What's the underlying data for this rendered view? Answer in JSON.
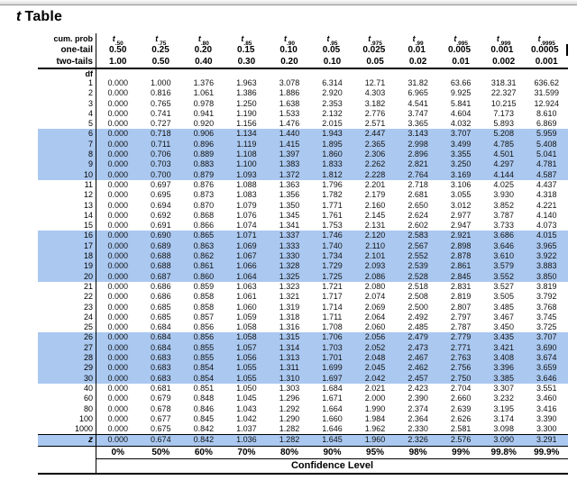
{
  "title": {
    "t": "t",
    "rest": "Table"
  },
  "colors": {
    "highlight": "#aac8f0",
    "line": "#000000",
    "top_bar": "#d8d8d8"
  },
  "header": {
    "cum_prob_label": "cum. prob",
    "one_tail_label": "one-tail",
    "two_tails_label": "two-tails",
    "df_label": "df",
    "t_base": "t",
    "t_subs": [
      ".50",
      ".75",
      ".80",
      ".85",
      ".90",
      ".95",
      ".975",
      ".99",
      ".995",
      ".999",
      ".9995"
    ],
    "one_tail": [
      "0.50",
      "0.25",
      "0.20",
      "0.15",
      "0.10",
      "0.05",
      "0.025",
      "0.01",
      "0.005",
      "0.001",
      "0.0005"
    ],
    "two_tails": [
      "1.00",
      "0.50",
      "0.40",
      "0.30",
      "0.20",
      "0.10",
      "0.05",
      "0.02",
      "0.01",
      "0.002",
      "0.001"
    ]
  },
  "body": {
    "rows": [
      {
        "df": "1",
        "highlight": false,
        "values": [
          "0.000",
          "1.000",
          "1.376",
          "1.963",
          "3.078",
          "6.314",
          "12.71",
          "31.82",
          "63.66",
          "318.31",
          "636.62"
        ]
      },
      {
        "df": "2",
        "highlight": false,
        "values": [
          "0.000",
          "0.816",
          "1.061",
          "1.386",
          "1.886",
          "2.920",
          "4.303",
          "6.965",
          "9.925",
          "22.327",
          "31.599"
        ]
      },
      {
        "df": "3",
        "highlight": false,
        "values": [
          "0.000",
          "0.765",
          "0.978",
          "1.250",
          "1.638",
          "2.353",
          "3.182",
          "4.541",
          "5.841",
          "10.215",
          "12.924"
        ]
      },
      {
        "df": "4",
        "highlight": false,
        "values": [
          "0.000",
          "0.741",
          "0.941",
          "1.190",
          "1.533",
          "2.132",
          "2.776",
          "3.747",
          "4.604",
          "7.173",
          "8.610"
        ]
      },
      {
        "df": "5",
        "highlight": false,
        "values": [
          "0.000",
          "0.727",
          "0.920",
          "1.156",
          "1.476",
          "2.015",
          "2.571",
          "3.365",
          "4.032",
          "5.893",
          "6.869"
        ]
      },
      {
        "df": "6",
        "highlight": true,
        "values": [
          "0.000",
          "0.718",
          "0.906",
          "1.134",
          "1.440",
          "1.943",
          "2.447",
          "3.143",
          "3.707",
          "5.208",
          "5.959"
        ]
      },
      {
        "df": "7",
        "highlight": true,
        "values": [
          "0.000",
          "0.711",
          "0.896",
          "1.119",
          "1.415",
          "1.895",
          "2.365",
          "2.998",
          "3.499",
          "4.785",
          "5.408"
        ]
      },
      {
        "df": "8",
        "highlight": true,
        "values": [
          "0.000",
          "0.706",
          "0.889",
          "1.108",
          "1.397",
          "1.860",
          "2.306",
          "2.896",
          "3.355",
          "4.501",
          "5.041"
        ]
      },
      {
        "df": "9",
        "highlight": true,
        "values": [
          "0.000",
          "0.703",
          "0.883",
          "1.100",
          "1.383",
          "1.833",
          "2.262",
          "2.821",
          "3.250",
          "4.297",
          "4.781"
        ]
      },
      {
        "df": "10",
        "highlight": true,
        "values": [
          "0.000",
          "0.700",
          "0.879",
          "1.093",
          "1.372",
          "1.812",
          "2.228",
          "2.764",
          "3.169",
          "4.144",
          "4.587"
        ]
      },
      {
        "df": "11",
        "highlight": false,
        "values": [
          "0.000",
          "0.697",
          "0.876",
          "1.088",
          "1.363",
          "1.796",
          "2.201",
          "2.718",
          "3.106",
          "4.025",
          "4.437"
        ]
      },
      {
        "df": "12",
        "highlight": false,
        "values": [
          "0.000",
          "0.695",
          "0.873",
          "1.083",
          "1.356",
          "1.782",
          "2.179",
          "2.681",
          "3.055",
          "3.930",
          "4.318"
        ]
      },
      {
        "df": "13",
        "highlight": false,
        "values": [
          "0.000",
          "0.694",
          "0.870",
          "1.079",
          "1.350",
          "1.771",
          "2.160",
          "2.650",
          "3.012",
          "3.852",
          "4.221"
        ]
      },
      {
        "df": "14",
        "highlight": false,
        "values": [
          "0.000",
          "0.692",
          "0.868",
          "1.076",
          "1.345",
          "1.761",
          "2.145",
          "2.624",
          "2.977",
          "3.787",
          "4.140"
        ]
      },
      {
        "df": "15",
        "highlight": false,
        "values": [
          "0.000",
          "0.691",
          "0.866",
          "1.074",
          "1.341",
          "1.753",
          "2.131",
          "2.602",
          "2.947",
          "3.733",
          "4.073"
        ]
      },
      {
        "df": "16",
        "highlight": true,
        "values": [
          "0.000",
          "0.690",
          "0.865",
          "1.071",
          "1.337",
          "1.746",
          "2.120",
          "2.583",
          "2.921",
          "3.686",
          "4.015"
        ]
      },
      {
        "df": "17",
        "highlight": true,
        "values": [
          "0.000",
          "0.689",
          "0.863",
          "1.069",
          "1.333",
          "1.740",
          "2.110",
          "2.567",
          "2.898",
          "3.646",
          "3.965"
        ]
      },
      {
        "df": "18",
        "highlight": true,
        "values": [
          "0.000",
          "0.688",
          "0.862",
          "1.067",
          "1.330",
          "1.734",
          "2.101",
          "2.552",
          "2.878",
          "3.610",
          "3.922"
        ]
      },
      {
        "df": "19",
        "highlight": true,
        "values": [
          "0.000",
          "0.688",
          "0.861",
          "1.066",
          "1.328",
          "1.729",
          "2.093",
          "2.539",
          "2.861",
          "3.579",
          "3.883"
        ]
      },
      {
        "df": "20",
        "highlight": true,
        "values": [
          "0.000",
          "0.687",
          "0.860",
          "1.064",
          "1.325",
          "1.725",
          "2.086",
          "2.528",
          "2.845",
          "3.552",
          "3.850"
        ]
      },
      {
        "df": "21",
        "highlight": false,
        "values": [
          "0.000",
          "0.686",
          "0.859",
          "1.063",
          "1.323",
          "1.721",
          "2.080",
          "2.518",
          "2.831",
          "3.527",
          "3.819"
        ]
      },
      {
        "df": "22",
        "highlight": false,
        "values": [
          "0.000",
          "0.686",
          "0.858",
          "1.061",
          "1.321",
          "1.717",
          "2.074",
          "2.508",
          "2.819",
          "3.505",
          "3.792"
        ]
      },
      {
        "df": "23",
        "highlight": false,
        "values": [
          "0.000",
          "0.685",
          "0.858",
          "1.060",
          "1.319",
          "1.714",
          "2.069",
          "2.500",
          "2.807",
          "3.485",
          "3.768"
        ]
      },
      {
        "df": "24",
        "highlight": false,
        "values": [
          "0.000",
          "0.685",
          "0.857",
          "1.059",
          "1.318",
          "1.711",
          "2.064",
          "2.492",
          "2.797",
          "3.467",
          "3.745"
        ]
      },
      {
        "df": "25",
        "highlight": false,
        "values": [
          "0.000",
          "0.684",
          "0.856",
          "1.058",
          "1.316",
          "1.708",
          "2.060",
          "2.485",
          "2.787",
          "3.450",
          "3.725"
        ]
      },
      {
        "df": "26",
        "highlight": true,
        "values": [
          "0.000",
          "0.684",
          "0.856",
          "1.058",
          "1.315",
          "1.706",
          "2.056",
          "2.479",
          "2.779",
          "3.435",
          "3.707"
        ]
      },
      {
        "df": "27",
        "highlight": true,
        "values": [
          "0.000",
          "0.684",
          "0.855",
          "1.057",
          "1.314",
          "1.703",
          "2.052",
          "2.473",
          "2.771",
          "3.421",
          "3.690"
        ]
      },
      {
        "df": "28",
        "highlight": true,
        "values": [
          "0.000",
          "0.683",
          "0.855",
          "1.056",
          "1.313",
          "1.701",
          "2.048",
          "2.467",
          "2.763",
          "3.408",
          "3.674"
        ]
      },
      {
        "df": "29",
        "highlight": true,
        "values": [
          "0.000",
          "0.683",
          "0.854",
          "1.055",
          "1.311",
          "1.699",
          "2.045",
          "2.462",
          "2.756",
          "3.396",
          "3.659"
        ]
      },
      {
        "df": "30",
        "highlight": true,
        "values": [
          "0.000",
          "0.683",
          "0.854",
          "1.055",
          "1.310",
          "1.697",
          "2.042",
          "2.457",
          "2.750",
          "3.385",
          "3.646"
        ]
      },
      {
        "df": "40",
        "highlight": false,
        "values": [
          "0.000",
          "0.681",
          "0.851",
          "1.050",
          "1.303",
          "1.684",
          "2.021",
          "2.423",
          "2.704",
          "3.307",
          "3.551"
        ]
      },
      {
        "df": "60",
        "highlight": false,
        "values": [
          "0.000",
          "0.679",
          "0.848",
          "1.045",
          "1.296",
          "1.671",
          "2.000",
          "2.390",
          "2.660",
          "3.232",
          "3.460"
        ]
      },
      {
        "df": "80",
        "highlight": false,
        "values": [
          "0.000",
          "0.678",
          "0.846",
          "1.043",
          "1.292",
          "1.664",
          "1.990",
          "2.374",
          "2.639",
          "3.195",
          "3.416"
        ]
      },
      {
        "df": "100",
        "highlight": false,
        "values": [
          "0.000",
          "0.677",
          "0.845",
          "1.042",
          "1.290",
          "1.660",
          "1.984",
          "2.364",
          "2.626",
          "3.174",
          "3.390"
        ]
      },
      {
        "df": "1000",
        "highlight": false,
        "values": [
          "0.000",
          "0.675",
          "0.842",
          "1.037",
          "1.282",
          "1.646",
          "1.962",
          "2.330",
          "2.581",
          "3.098",
          "3.300"
        ]
      },
      {
        "df": "z",
        "z": true,
        "highlight": true,
        "values": [
          "0.000",
          "0.674",
          "0.842",
          "1.036",
          "1.282",
          "1.645",
          "1.960",
          "2.326",
          "2.576",
          "3.090",
          "3.291"
        ]
      }
    ]
  },
  "footer": {
    "percents": [
      "0%",
      "50%",
      "60%",
      "70%",
      "80%",
      "90%",
      "95%",
      "98%",
      "99%",
      "99.8%",
      "99.9%"
    ],
    "confidence_label": "Confidence Level"
  }
}
